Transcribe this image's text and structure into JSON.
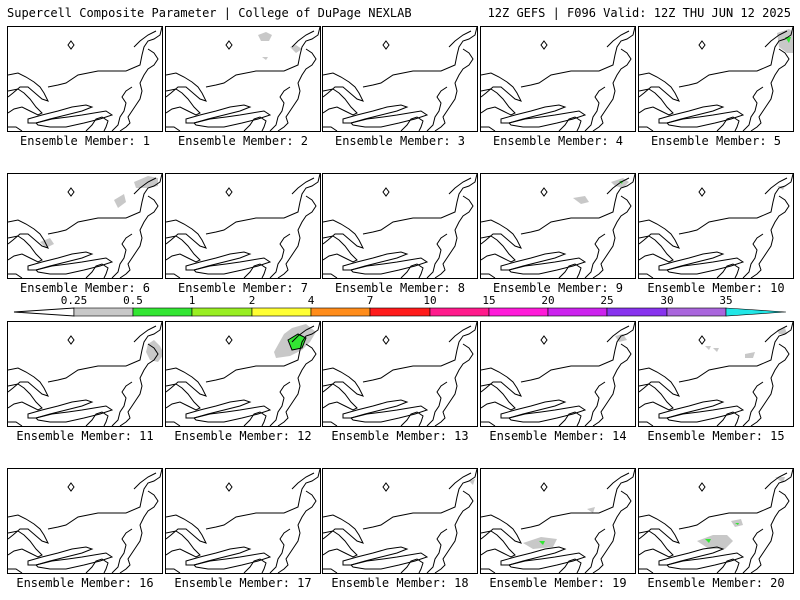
{
  "header": {
    "left_title": "Supercell Composite Parameter | College of DuPage NEXLAB",
    "right_title": "12Z GEFS | F096 Valid: 12Z THU JUN 12 2025"
  },
  "colorbar": {
    "ticks": [
      "0.25",
      "0.5",
      "1",
      "2",
      "4",
      "7",
      "10",
      "15",
      "20",
      "25",
      "30",
      "35"
    ],
    "colors": [
      "#c8c8c8",
      "#33e633",
      "#99ee22",
      "#ffff33",
      "#ff8c1a",
      "#ff1a1a",
      "#ff1a8c",
      "#ff1ad9",
      "#cc22ee",
      "#8833ee",
      "#aa66dd",
      "#22e6e6"
    ]
  },
  "panels": [
    {
      "label": "Ensemble Member: 1"
    },
    {
      "label": "Ensemble Member: 2"
    },
    {
      "label": "Ensemble Member: 3"
    },
    {
      "label": "Ensemble Member: 4"
    },
    {
      "label": "Ensemble Member: 5"
    },
    {
      "label": "Ensemble Member: 6"
    },
    {
      "label": "Ensemble Member: 7"
    },
    {
      "label": "Ensemble Member: 8"
    },
    {
      "label": "Ensemble Member: 9"
    },
    {
      "label": "Ensemble Member: 10"
    },
    {
      "label": "Ensemble Member: 11"
    },
    {
      "label": "Ensemble Member: 12"
    },
    {
      "label": "Ensemble Member: 13"
    },
    {
      "label": "Ensemble Member: 14"
    },
    {
      "label": "Ensemble Member: 15"
    },
    {
      "label": "Ensemble Member: 16"
    },
    {
      "label": "Ensemble Member: 17"
    },
    {
      "label": "Ensemble Member: 18"
    },
    {
      "label": "Ensemble Member: 19"
    },
    {
      "label": "Ensemble Member: 20"
    }
  ]
}
